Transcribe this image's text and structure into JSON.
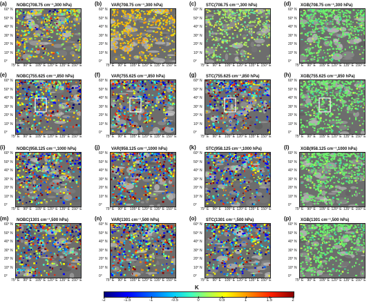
{
  "panels": [
    {
      "label": "(a)",
      "title": "NOBC(708.75 cm⁻¹,300 hPa)",
      "level": 300,
      "method": "NOBC",
      "box": false
    },
    {
      "label": "(b)",
      "title": "VAR(708.75 cm⁻¹,300 hPa)",
      "level": 300,
      "method": "VAR",
      "box": false
    },
    {
      "label": "(c)",
      "title": "STC(708.75 cm⁻¹,300 hPa)",
      "level": 300,
      "method": "STC",
      "box": false
    },
    {
      "label": "(d)",
      "title": "XGB(708.75 cm⁻¹,300 hPa)",
      "level": 300,
      "method": "XGB",
      "box": false
    },
    {
      "label": "(e)",
      "title": "NOBC(755.625 cm⁻¹,850 hPa)",
      "level": 850,
      "method": "NOBC",
      "box": true
    },
    {
      "label": "(f)",
      "title": "VAR(755.625 cm⁻¹,850 hPa)",
      "level": 850,
      "method": "VAR",
      "box": true
    },
    {
      "label": "(g)",
      "title": "STC(755.625 cm⁻¹,850 hPa)",
      "level": 850,
      "method": "STC",
      "box": true
    },
    {
      "label": "(h)",
      "title": "XGB(755.625 cm⁻¹,850 hPa)",
      "level": 850,
      "method": "XGB",
      "box": true
    },
    {
      "label": "(i)",
      "title": "NOBC(958.125 cm⁻¹,1000 hPa)",
      "level": 1000,
      "method": "NOBC",
      "box": false
    },
    {
      "label": "(j)",
      "title": "VAR(958.125 cm⁻¹,1000 hPa)",
      "level": 1000,
      "method": "VAR",
      "box": false
    },
    {
      "label": "(k)",
      "title": "STC(958.125 cm⁻¹,1000 hPa)",
      "level": 1000,
      "method": "STC",
      "box": false
    },
    {
      "label": "(l)",
      "title": "XGB(958.125 cm⁻¹,1000 hPa)",
      "level": 1000,
      "method": "XGB",
      "box": false
    },
    {
      "label": "(m)",
      "title": "NOBC(1301 cm⁻¹,500 hPa)",
      "level": 500,
      "method": "NOBC",
      "box": false
    },
    {
      "label": "(n)",
      "title": "VAR(1301 cm⁻¹,500 hPa)",
      "level": 500,
      "method": "VAR",
      "box": false
    },
    {
      "label": "(o)",
      "title": "STC(1301 cm⁻¹,500 hPa)",
      "level": 500,
      "method": "STC",
      "box": false
    },
    {
      "label": "(p)",
      "title": "XGB(1301 cm⁻¹,500 hPa)",
      "level": 500,
      "method": "XGB",
      "box": false
    }
  ],
  "axes": {
    "y_ticks": [
      "60° N",
      "50° N",
      "40° N",
      "30° N",
      "20° N",
      "10° N",
      "0°"
    ],
    "x_ticks": [
      "75° E",
      "90° E",
      "105° E",
      "120° E",
      "135° E",
      "150° E"
    ]
  },
  "colorbar": {
    "title": "K",
    "min": -2,
    "max": 2,
    "ticks": [
      "-2",
      "-1.5",
      "-1",
      "-0.5",
      "0",
      "0.5",
      "1",
      "1.5",
      "2"
    ],
    "colors": [
      "#00007a",
      "#0000ff",
      "#0060ff",
      "#00c8ff",
      "#40ffc0",
      "#a0ff60",
      "#ffff00",
      "#ff9000",
      "#ff2000",
      "#8a0000"
    ]
  }
}
